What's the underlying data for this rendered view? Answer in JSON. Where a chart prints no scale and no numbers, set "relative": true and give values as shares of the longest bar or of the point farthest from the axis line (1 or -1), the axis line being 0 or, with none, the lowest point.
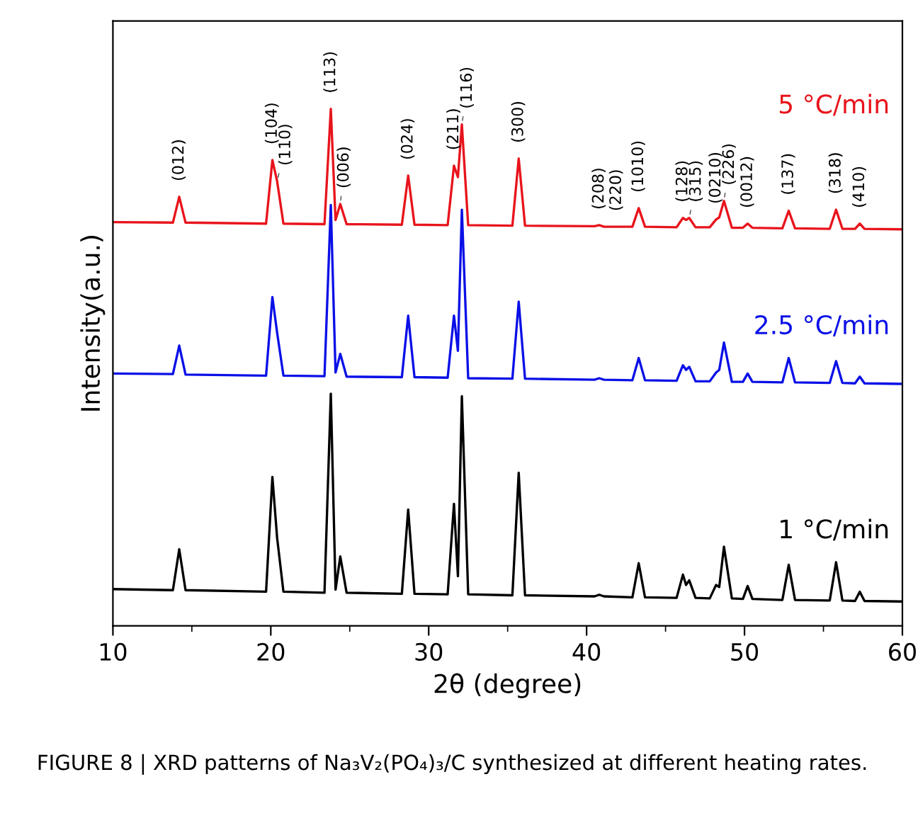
{
  "chart_data": {
    "type": "line",
    "relative": true,
    "xlabel": "2θ (degree)",
    "ylabel": "Intensity(a.u.)",
    "xlim": [
      10,
      60
    ],
    "xticks": [
      10,
      20,
      30,
      40,
      50,
      60
    ],
    "tick_labels": "x",
    "grid": false,
    "legend": false,
    "marker": "none",
    "line_style": "solid",
    "x": [
      10,
      13.8,
      14.2,
      14.6,
      19.7,
      20.1,
      20.4,
      20.8,
      23.4,
      23.8,
      24.1,
      24.4,
      24.8,
      28.3,
      28.7,
      29.1,
      31.2,
      31.6,
      31.85,
      32.1,
      32.5,
      35.3,
      35.7,
      36.1,
      40.5,
      40.8,
      41.1,
      42.9,
      43.3,
      43.7,
      45.7,
      46.1,
      46.3,
      46.5,
      46.9,
      47.8,
      48.2,
      48.4,
      48.7,
      49.2,
      49.9,
      50.2,
      50.5,
      52.4,
      52.8,
      53.2,
      55.4,
      55.8,
      56.2,
      57.0,
      57.3,
      57.6,
      60
    ],
    "series": [
      {
        "name": "5 °C/min",
        "color": "#e8141c",
        "values": [
          0.781,
          0.78,
          0.83,
          0.78,
          0.778,
          0.901,
          0.86,
          0.778,
          0.777,
          1.0,
          0.785,
          0.816,
          0.777,
          0.776,
          0.871,
          0.776,
          0.775,
          0.89,
          0.868,
          0.97,
          0.775,
          0.774,
          0.904,
          0.774,
          0.773,
          0.775,
          0.772,
          0.772,
          0.808,
          0.772,
          0.771,
          0.789,
          0.785,
          0.789,
          0.771,
          0.771,
          0.786,
          0.79,
          0.822,
          0.77,
          0.77,
          0.778,
          0.77,
          0.769,
          0.803,
          0.769,
          0.768,
          0.805,
          0.768,
          0.768,
          0.778,
          0.768,
          0.767
        ]
      },
      {
        "name": "2.5 °C/min",
        "color": "#0a10e6",
        "values": [
          0.488,
          0.487,
          0.542,
          0.486,
          0.484,
          0.636,
          0.567,
          0.484,
          0.483,
          0.814,
          0.49,
          0.526,
          0.482,
          0.481,
          0.6,
          0.481,
          0.48,
          0.6,
          0.532,
          0.805,
          0.479,
          0.478,
          0.627,
          0.478,
          0.476,
          0.479,
          0.476,
          0.475,
          0.518,
          0.475,
          0.474,
          0.504,
          0.495,
          0.501,
          0.473,
          0.473,
          0.49,
          0.495,
          0.548,
          0.472,
          0.472,
          0.488,
          0.472,
          0.471,
          0.518,
          0.471,
          0.47,
          0.512,
          0.47,
          0.469,
          0.482,
          0.469,
          0.468
        ]
      },
      {
        "name": "1 °C/min",
        "color": "#000000",
        "values": [
          0.071,
          0.069,
          0.148,
          0.069,
          0.066,
          0.288,
          0.17,
          0.066,
          0.064,
          0.449,
          0.07,
          0.134,
          0.064,
          0.062,
          0.225,
          0.062,
          0.061,
          0.236,
          0.096,
          0.444,
          0.061,
          0.059,
          0.296,
          0.059,
          0.057,
          0.06,
          0.057,
          0.055,
          0.121,
          0.055,
          0.054,
          0.099,
          0.079,
          0.088,
          0.054,
          0.053,
          0.079,
          0.075,
          0.153,
          0.053,
          0.052,
          0.077,
          0.052,
          0.05,
          0.118,
          0.05,
          0.049,
          0.123,
          0.049,
          0.048,
          0.066,
          0.048,
          0.047
        ]
      }
    ],
    "annotations": [
      {
        "text": "(012)",
        "x": 14.2,
        "y": 0.83
      },
      {
        "text": "(104)",
        "x": 20.1,
        "y": 0.901
      },
      {
        "text": "(110)",
        "x": 20.4,
        "y": 0.86
      },
      {
        "text": "(113)",
        "x": 23.8,
        "y": 1.0
      },
      {
        "text": "(006)",
        "x": 24.4,
        "y": 0.816
      },
      {
        "text": "(024)",
        "x": 28.7,
        "y": 0.871
      },
      {
        "text": "(211)",
        "x": 31.6,
        "y": 0.89
      },
      {
        "text": "(116)",
        "x": 32.1,
        "y": 0.97
      },
      {
        "text": "(300)",
        "x": 35.7,
        "y": 0.904
      },
      {
        "text": "(208)",
        "x": 40.8,
        "y": 0.775
      },
      {
        "text": "(220)",
        "x": 41.9,
        "y": 0.772
      },
      {
        "text": "(1010)",
        "x": 43.3,
        "y": 0.808
      },
      {
        "text": "(128)",
        "x": 46.1,
        "y": 0.789
      },
      {
        "text": "(315)",
        "x": 46.5,
        "y": 0.789
      },
      {
        "text": "(0210)",
        "x": 48.2,
        "y": 0.786
      },
      {
        "text": "(226)",
        "x": 48.7,
        "y": 0.822
      },
      {
        "text": "(0012)",
        "x": 50.2,
        "y": 0.778
      },
      {
        "text": "(137)",
        "x": 52.8,
        "y": 0.803
      },
      {
        "text": "(318)",
        "x": 55.8,
        "y": 0.805
      },
      {
        "text": "(410)",
        "x": 57.3,
        "y": 0.778
      },
      "FIGURE 8 | XRD patterns of Na₃V₂(PO₄)₃/C synthesized at different heating rates."
    ]
  }
}
